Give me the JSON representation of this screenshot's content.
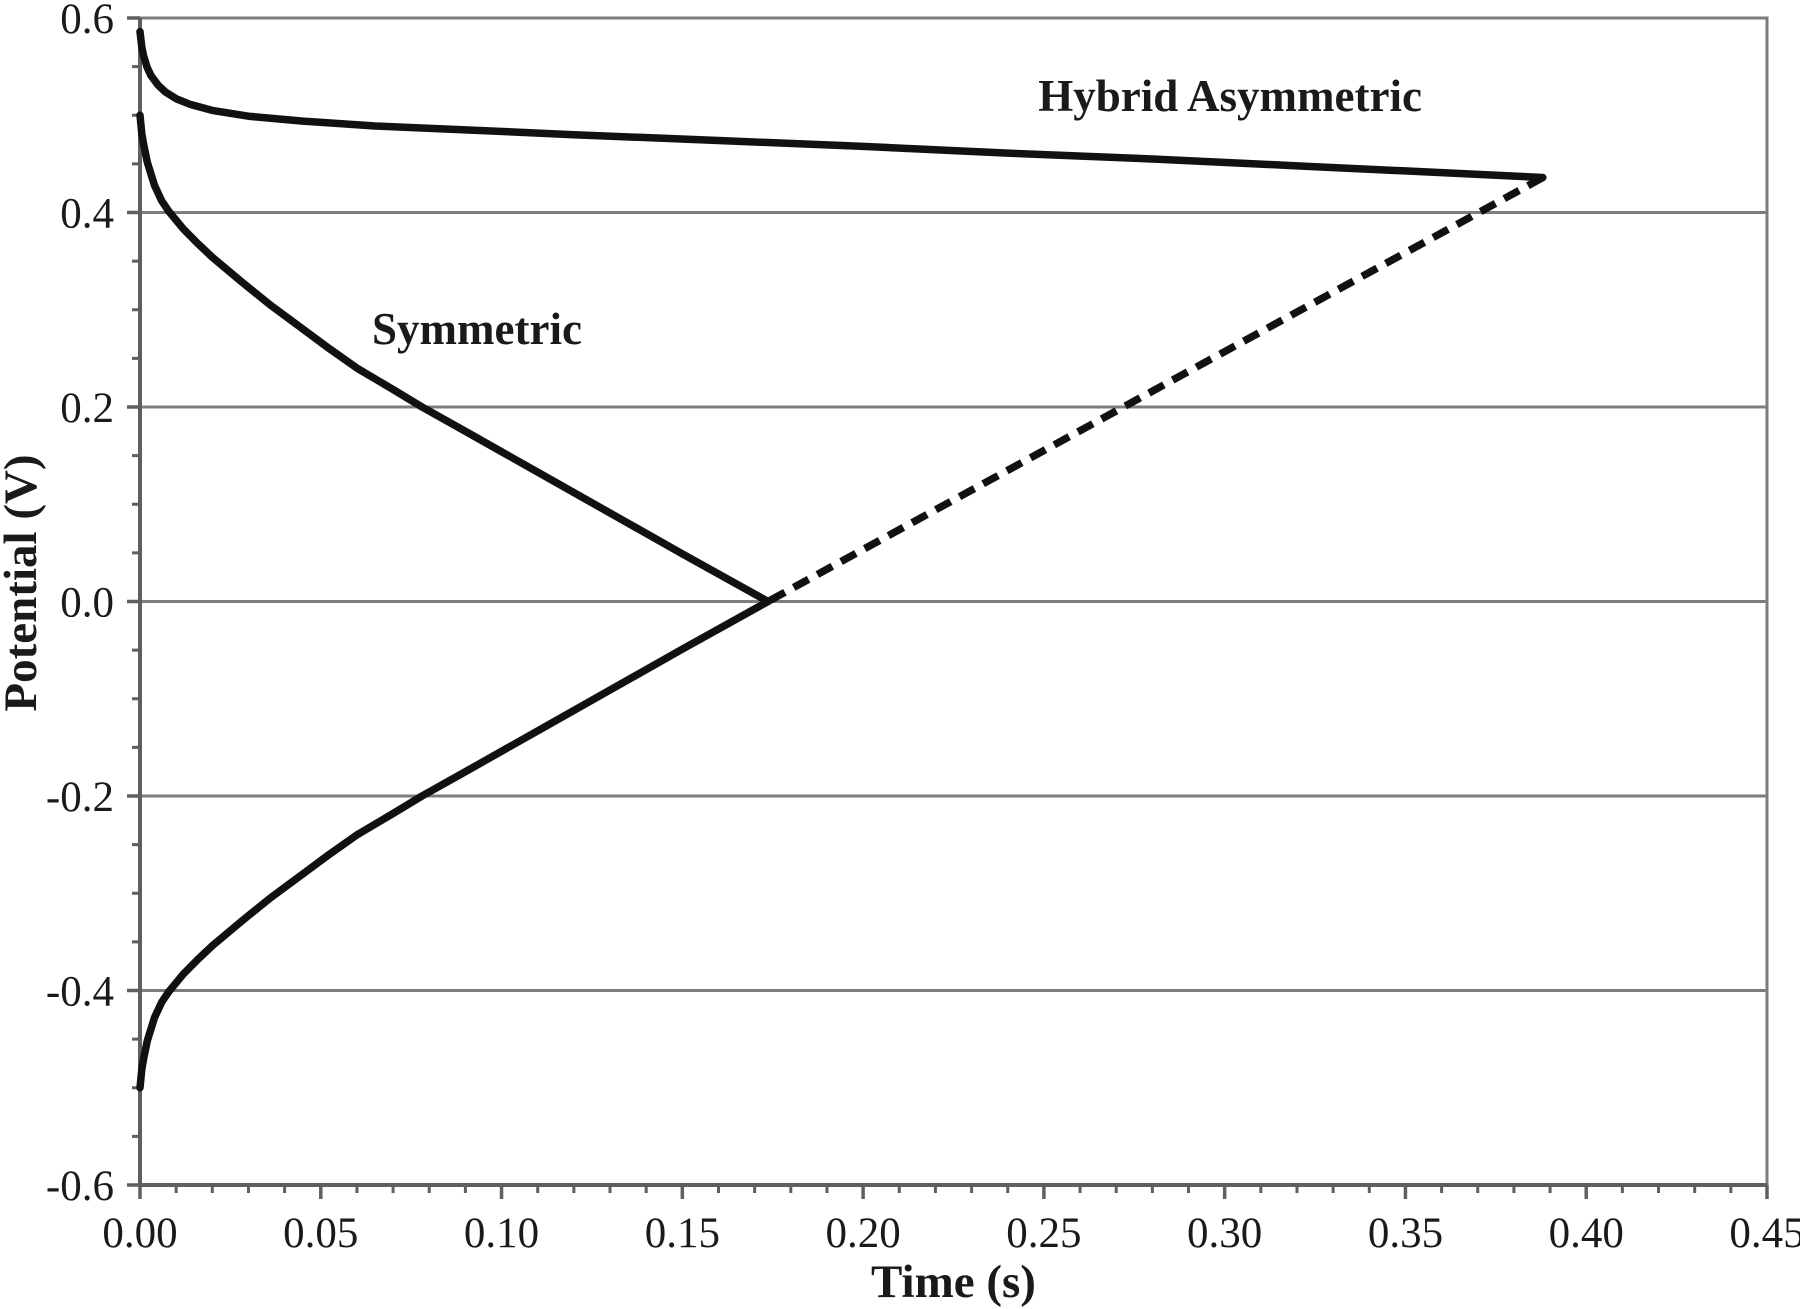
{
  "figure": {
    "background": "#ffffff"
  },
  "chart_data": {
    "type": "line",
    "title": "",
    "xlabel": "Time (s)",
    "ylabel": "Potential (V)",
    "xlim": [
      0,
      0.45
    ],
    "ylim": [
      -0.6,
      0.6
    ],
    "grid": "horizontal-major",
    "legend": "none",
    "x_ticks": {
      "values": [
        0.0,
        0.05,
        0.1,
        0.15,
        0.2,
        0.25,
        0.3,
        0.35,
        0.4,
        0.45
      ],
      "labels": [
        "0.00",
        "0.05",
        "0.10",
        "0.15",
        "0.20",
        "0.25",
        "0.30",
        "0.35",
        "0.40",
        "0.45"
      ]
    },
    "y_ticks": {
      "values": [
        0.6,
        0.4,
        0.2,
        0.0,
        -0.2,
        -0.4,
        -0.6
      ],
      "labels": [
        "0.6",
        "0.4",
        "0.2",
        "0.0",
        "-0.2",
        "-0.4",
        "-0.6"
      ]
    },
    "x_minor_tick_step": 0.01,
    "y_minor_tick_step": 0.05,
    "colors": {
      "series": "#111111",
      "grid": "#7d7d7d",
      "axis": "#5f5f5f",
      "text": "#1a1a1a"
    },
    "series": [
      {
        "name": "hybrid-asymmetric-discharge",
        "style": "solid",
        "points": [
          [
            0.0,
            0.586
          ],
          [
            0.0005,
            0.57
          ],
          [
            0.001,
            0.561
          ],
          [
            0.002,
            0.549
          ],
          [
            0.003,
            0.541
          ],
          [
            0.005,
            0.531
          ],
          [
            0.007,
            0.524
          ],
          [
            0.01,
            0.517
          ],
          [
            0.014,
            0.511
          ],
          [
            0.02,
            0.505
          ],
          [
            0.03,
            0.499
          ],
          [
            0.045,
            0.494
          ],
          [
            0.065,
            0.489
          ],
          [
            0.09,
            0.485
          ],
          [
            0.12,
            0.48
          ],
          [
            0.16,
            0.474
          ],
          [
            0.2,
            0.468
          ],
          [
            0.24,
            0.461
          ],
          [
            0.28,
            0.455
          ],
          [
            0.32,
            0.448
          ],
          [
            0.36,
            0.441
          ],
          [
            0.388,
            0.436
          ]
        ]
      },
      {
        "name": "hybrid-asymmetric-return-dashed",
        "style": "dashed",
        "points": [
          [
            0.388,
            0.436
          ],
          [
            0.1737,
            0.0
          ]
        ]
      },
      {
        "name": "symmetric-positive-electrode",
        "style": "solid",
        "points": [
          [
            0.0,
            0.5
          ],
          [
            0.0005,
            0.481
          ],
          [
            0.001,
            0.47
          ],
          [
            0.002,
            0.452
          ],
          [
            0.003,
            0.44
          ],
          [
            0.004,
            0.428
          ],
          [
            0.006,
            0.412
          ],
          [
            0.008,
            0.401
          ],
          [
            0.012,
            0.383
          ],
          [
            0.016,
            0.368
          ],
          [
            0.02,
            0.354
          ],
          [
            0.028,
            0.329
          ],
          [
            0.036,
            0.305
          ],
          [
            0.044,
            0.283
          ],
          [
            0.052,
            0.261
          ],
          [
            0.06,
            0.24
          ],
          [
            0.07,
            0.218
          ],
          [
            0.078,
            0.2
          ],
          [
            0.09,
            0.175
          ],
          [
            0.11,
            0.133
          ],
          [
            0.13,
            0.091
          ],
          [
            0.15,
            0.049
          ],
          [
            0.1737,
            0.0
          ]
        ]
      },
      {
        "name": "symmetric-negative-electrode",
        "style": "solid",
        "points": [
          [
            0.0,
            -0.5
          ],
          [
            0.0005,
            -0.481
          ],
          [
            0.001,
            -0.47
          ],
          [
            0.002,
            -0.452
          ],
          [
            0.003,
            -0.44
          ],
          [
            0.004,
            -0.428
          ],
          [
            0.006,
            -0.412
          ],
          [
            0.008,
            -0.401
          ],
          [
            0.012,
            -0.383
          ],
          [
            0.016,
            -0.368
          ],
          [
            0.02,
            -0.354
          ],
          [
            0.028,
            -0.329
          ],
          [
            0.036,
            -0.305
          ],
          [
            0.044,
            -0.283
          ],
          [
            0.052,
            -0.261
          ],
          [
            0.06,
            -0.24
          ],
          [
            0.07,
            -0.218
          ],
          [
            0.078,
            -0.2
          ],
          [
            0.09,
            -0.175
          ],
          [
            0.11,
            -0.133
          ],
          [
            0.13,
            -0.091
          ],
          [
            0.15,
            -0.049
          ],
          [
            0.1737,
            0.0
          ]
        ]
      }
    ],
    "annotations": [
      {
        "id": "hybrid-asymmetric",
        "text": "Hybrid Asymmetric",
        "x": 0.3015,
        "y": 0.521
      },
      {
        "id": "symmetric",
        "text": "Symmetric",
        "x": 0.0932,
        "y": 0.281
      }
    ]
  }
}
